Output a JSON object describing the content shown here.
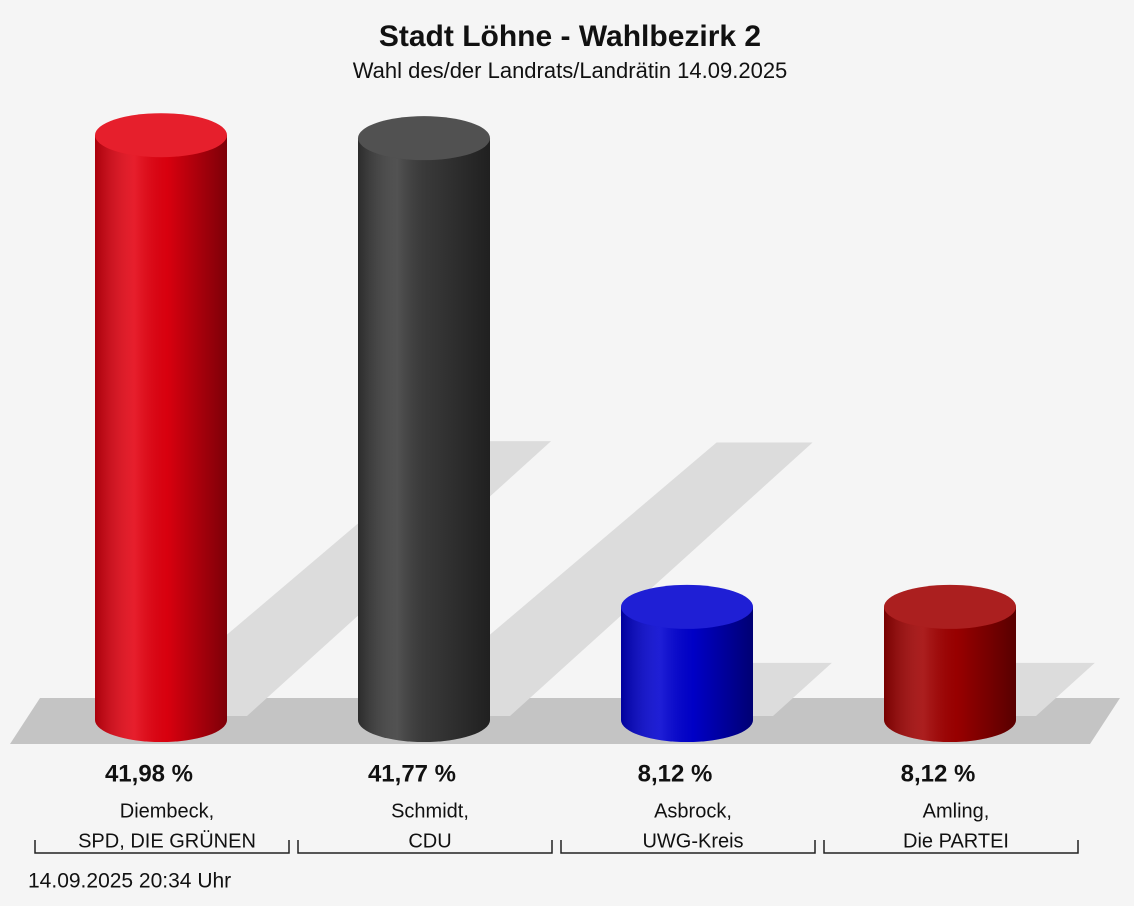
{
  "chart_data": {
    "type": "cylinder-bar",
    "title": "Stadt Löhne - Wahlbezirk 2",
    "subtitle": "Wahl des/der Landrats/Landrätin 14.09.2025",
    "categories": [
      [
        "Diembeck,",
        "SPD, DIE GRÜNEN"
      ],
      [
        "Schmidt,",
        "CDU"
      ],
      [
        "Asbrock,",
        "UWG-Kreis"
      ],
      [
        "Amling,",
        "Die PARTEI"
      ]
    ],
    "values": [
      41.98,
      41.77,
      8.12,
      8.12
    ],
    "value_labels": [
      "41,98 %",
      "41,77 %",
      "8,12 %",
      "8,12 %"
    ],
    "colors": [
      "#e3000f",
      "#3a3a3a",
      "#0000d0",
      "#a00000"
    ],
    "footnote": "14.09.2025 20:34 Uhr"
  }
}
